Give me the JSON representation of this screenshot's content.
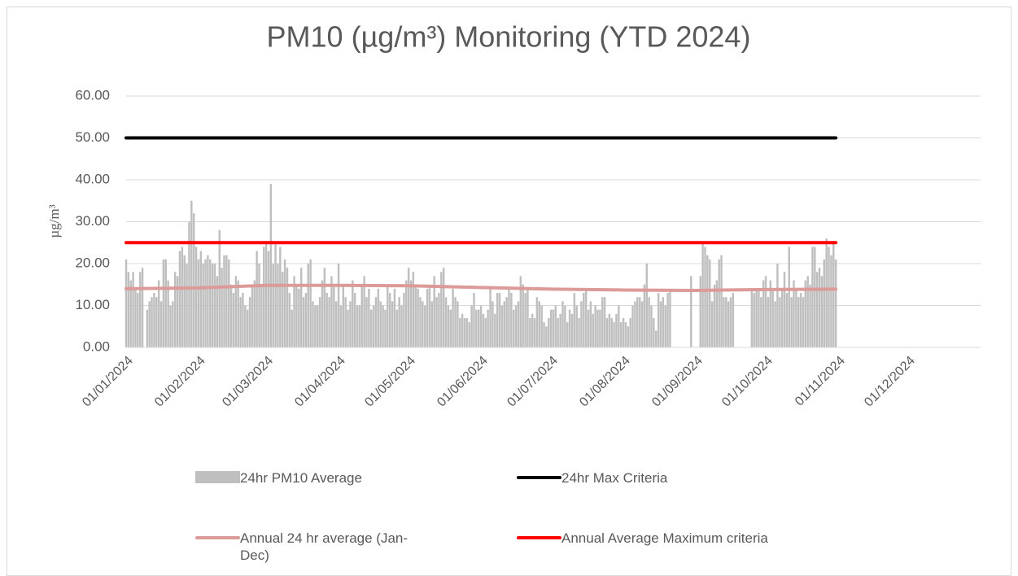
{
  "chart_data": {
    "type": "bar",
    "title": "PM10 (µg/m³) Monitoring (YTD 2024)",
    "y_label": "µg/m³",
    "xlim": [
      "01/01/2024",
      "01/01/2025"
    ],
    "xticks": [
      "01/01/2024",
      "01/02/2024",
      "01/03/2024",
      "01/04/2024",
      "01/05/2024",
      "01/06/2024",
      "01/07/2024",
      "01/08/2024",
      "01/09/2024",
      "01/10/2024",
      "01/11/2024",
      "01/12/2024"
    ],
    "ylim": [
      0,
      60
    ],
    "yticks": [
      {
        "value": 0,
        "label": "0.00"
      },
      {
        "value": 10,
        "label": "10.00"
      },
      {
        "value": 20,
        "label": "20.00"
      },
      {
        "value": 30,
        "label": "30.00"
      },
      {
        "value": 40,
        "label": "40.00"
      },
      {
        "value": 50,
        "label": "50.00"
      },
      {
        "value": 60,
        "label": "60.00"
      }
    ],
    "grid": true,
    "legend": "bottom",
    "series": [
      {
        "name": "24hr PM10 Average",
        "type": "bar",
        "color": "#bfbfbf",
        "x": [
          "01/01/2024",
          "02/01/2024",
          "03/01/2024",
          "04/01/2024",
          "05/01/2024",
          "06/01/2024",
          "07/01/2024",
          "08/01/2024",
          "09/01/2024",
          "10/01/2024",
          "11/01/2024",
          "12/01/2024",
          "13/01/2024",
          "14/01/2024",
          "15/01/2024",
          "16/01/2024",
          "17/01/2024",
          "18/01/2024",
          "19/01/2024",
          "20/01/2024",
          "21/01/2024",
          "22/01/2024",
          "23/01/2024",
          "24/01/2024",
          "25/01/2024",
          "26/01/2024",
          "27/01/2024",
          "28/01/2024",
          "29/01/2024",
          "30/01/2024",
          "31/01/2024",
          "01/02/2024",
          "02/02/2024",
          "03/02/2024",
          "04/02/2024",
          "05/02/2024",
          "06/02/2024",
          "07/02/2024",
          "08/02/2024",
          "09/02/2024",
          "10/02/2024",
          "11/02/2024",
          "12/02/2024",
          "13/02/2024",
          "14/02/2024",
          "15/02/2024",
          "16/02/2024",
          "17/02/2024",
          "18/02/2024",
          "19/02/2024",
          "20/02/2024",
          "21/02/2024",
          "22/02/2024",
          "23/02/2024",
          "24/02/2024",
          "25/02/2024",
          "26/02/2024",
          "27/02/2024",
          "28/02/2024",
          "29/02/2024",
          "01/03/2024",
          "02/03/2024",
          "03/03/2024",
          "04/03/2024",
          "05/03/2024",
          "06/03/2024",
          "07/03/2024",
          "08/03/2024",
          "09/03/2024",
          "10/03/2024",
          "11/03/2024",
          "12/03/2024",
          "13/03/2024",
          "14/03/2024",
          "15/03/2024",
          "16/03/2024",
          "17/03/2024",
          "18/03/2024",
          "19/03/2024",
          "20/03/2024",
          "21/03/2024",
          "22/03/2024",
          "23/03/2024",
          "24/03/2024",
          "25/03/2024",
          "26/03/2024",
          "27/03/2024",
          "28/03/2024",
          "29/03/2024",
          "30/03/2024",
          "31/03/2024",
          "01/04/2024",
          "02/04/2024",
          "03/04/2024",
          "04/04/2024",
          "05/04/2024",
          "06/04/2024",
          "07/04/2024",
          "08/04/2024",
          "09/04/2024",
          "10/04/2024",
          "11/04/2024",
          "12/04/2024",
          "13/04/2024",
          "14/04/2024",
          "15/04/2024",
          "16/04/2024",
          "17/04/2024",
          "18/04/2024",
          "19/04/2024",
          "20/04/2024",
          "21/04/2024",
          "22/04/2024",
          "23/04/2024",
          "24/04/2024",
          "25/04/2024",
          "26/04/2024",
          "27/04/2024",
          "28/04/2024",
          "29/04/2024",
          "30/04/2024",
          "01/05/2024",
          "02/05/2024",
          "03/05/2024",
          "04/05/2024",
          "05/05/2024",
          "06/05/2024",
          "07/05/2024",
          "08/05/2024",
          "09/05/2024",
          "10/05/2024",
          "11/05/2024",
          "12/05/2024",
          "13/05/2024",
          "14/05/2024",
          "15/05/2024",
          "16/05/2024",
          "17/05/2024",
          "18/05/2024",
          "19/05/2024",
          "20/05/2024",
          "21/05/2024",
          "22/05/2024",
          "23/05/2024",
          "24/05/2024",
          "25/05/2024",
          "26/05/2024",
          "27/05/2024",
          "28/05/2024",
          "29/05/2024",
          "30/05/2024",
          "31/05/2024",
          "01/06/2024",
          "02/06/2024",
          "03/06/2024",
          "04/06/2024",
          "05/06/2024",
          "06/06/2024",
          "07/06/2024",
          "08/06/2024",
          "09/06/2024",
          "10/06/2024",
          "11/06/2024",
          "12/06/2024",
          "13/06/2024",
          "14/06/2024",
          "15/06/2024",
          "16/06/2024",
          "17/06/2024",
          "18/06/2024",
          "19/06/2024",
          "20/06/2024",
          "21/06/2024",
          "22/06/2024",
          "23/06/2024",
          "24/06/2024",
          "25/06/2024",
          "26/06/2024",
          "27/06/2024",
          "28/06/2024",
          "29/06/2024",
          "30/06/2024",
          "01/07/2024",
          "02/07/2024",
          "03/07/2024",
          "04/07/2024",
          "05/07/2024",
          "06/07/2024",
          "07/07/2024",
          "08/07/2024",
          "09/07/2024",
          "10/07/2024",
          "11/07/2024",
          "12/07/2024",
          "13/07/2024",
          "14/07/2024",
          "15/07/2024",
          "16/07/2024",
          "17/07/2024",
          "18/07/2024",
          "19/07/2024",
          "20/07/2024",
          "21/07/2024",
          "22/07/2024",
          "23/07/2024",
          "24/07/2024",
          "25/07/2024",
          "26/07/2024",
          "27/07/2024",
          "28/07/2024",
          "29/07/2024",
          "30/07/2024",
          "31/07/2024",
          "01/08/2024",
          "02/08/2024",
          "03/08/2024",
          "04/08/2024",
          "05/08/2024",
          "06/08/2024",
          "07/08/2024",
          "08/08/2024",
          "09/08/2024",
          "10/08/2024",
          "11/08/2024",
          "12/08/2024",
          "13/08/2024",
          "14/08/2024",
          "15/08/2024",
          "16/08/2024",
          "17/08/2024",
          "18/08/2024",
          "19/08/2024",
          "20/08/2024",
          "21/08/2024",
          "22/08/2024",
          "23/08/2024",
          "24/08/2024",
          "25/08/2024",
          "26/08/2024",
          "27/08/2024",
          "28/08/2024",
          "29/08/2024",
          "30/08/2024",
          "31/08/2024",
          "01/09/2024",
          "02/09/2024",
          "03/09/2024",
          "04/09/2024",
          "05/09/2024",
          "06/09/2024",
          "07/09/2024",
          "08/09/2024",
          "09/09/2024",
          "10/09/2024",
          "11/09/2024",
          "12/09/2024",
          "13/09/2024",
          "14/09/2024",
          "15/09/2024",
          "16/09/2024",
          "17/09/2024",
          "18/09/2024",
          "19/09/2024",
          "20/09/2024",
          "21/09/2024",
          "22/09/2024",
          "23/09/2024",
          "24/09/2024",
          "25/09/2024",
          "26/09/2024",
          "27/09/2024",
          "28/09/2024",
          "29/09/2024",
          "30/09/2024",
          "01/10/2024",
          "02/10/2024",
          "03/10/2024",
          "04/10/2024",
          "05/10/2024",
          "06/10/2024",
          "07/10/2024",
          "08/10/2024",
          "09/10/2024",
          "10/10/2024",
          "11/10/2024",
          "12/10/2024",
          "13/10/2024",
          "14/10/2024",
          "15/10/2024",
          "16/10/2024",
          "17/10/2024",
          "18/10/2024",
          "19/10/2024",
          "20/10/2024",
          "21/10/2024",
          "22/10/2024",
          "23/10/2024",
          "24/10/2024",
          "25/10/2024",
          "26/10/2024",
          "27/10/2024",
          "28/10/2024",
          "29/10/2024",
          "30/10/2024",
          "31/10/2024"
        ],
        "values": [
          21,
          18,
          16,
          18,
          14,
          13,
          18,
          19,
          null,
          9,
          11,
          12,
          13,
          12,
          16,
          11,
          21,
          21,
          16,
          10,
          11,
          18,
          17,
          23,
          24,
          22,
          20,
          30,
          35,
          32,
          24,
          21,
          23,
          20,
          21,
          22,
          21,
          20,
          20,
          17,
          28,
          19,
          22,
          22,
          21,
          15,
          13,
          17,
          16,
          12,
          13,
          10,
          9,
          12,
          15,
          16,
          23,
          20,
          15,
          24,
          25,
          23,
          39,
          20,
          25,
          20,
          24,
          18,
          21,
          19,
          13,
          9,
          17,
          15,
          14,
          19,
          12,
          13,
          20,
          21,
          11,
          10,
          10,
          12,
          16,
          19,
          13,
          12,
          17,
          15,
          11,
          20,
          10,
          15,
          12,
          9,
          11,
          16,
          13,
          10,
          10,
          15,
          17,
          12,
          14,
          9,
          10,
          12,
          14,
          11,
          10,
          9,
          15,
          13,
          11,
          14,
          9,
          12,
          10,
          13,
          16,
          19,
          16,
          18,
          15,
          14,
          12,
          11,
          10,
          14,
          15,
          11,
          17,
          12,
          13,
          18,
          19,
          12,
          10,
          9,
          14,
          12,
          11,
          7,
          8,
          7,
          7,
          6,
          10,
          13,
          9,
          9,
          10,
          8,
          7,
          9,
          14,
          11,
          8,
          13,
          13,
          10,
          11,
          12,
          14,
          13,
          9,
          10,
          11,
          17,
          15,
          13,
          14,
          7,
          8,
          7,
          12,
          11,
          10,
          6,
          5,
          7,
          9,
          9,
          10,
          7,
          8,
          11,
          10,
          6,
          9,
          8,
          13,
          10,
          7,
          11,
          13,
          14,
          9,
          11,
          8,
          10,
          9,
          9,
          12,
          12,
          7,
          8,
          7,
          6,
          8,
          10,
          6,
          7,
          6,
          5,
          7,
          10,
          11,
          12,
          12,
          11,
          15,
          20,
          12,
          10,
          7,
          4,
          13,
          11,
          12,
          10,
          13,
          14,
          null,
          null,
          null,
          null,
          null,
          null,
          null,
          null,
          17,
          null,
          null,
          null,
          17,
          25,
          24,
          22,
          21,
          11,
          15,
          16,
          21,
          22,
          12,
          12,
          11,
          12,
          13,
          null,
          null,
          null,
          null,
          null,
          null,
          null,
          14,
          13,
          14,
          14,
          12,
          16,
          17,
          12,
          16,
          14,
          11,
          20,
          12,
          14,
          18,
          13,
          24,
          12,
          16,
          14,
          12,
          13,
          12,
          16,
          17,
          15,
          24,
          24,
          18,
          19,
          17,
          21,
          26,
          24,
          22,
          25,
          21
        ]
      },
      {
        "name": "24hr Max Criteria",
        "type": "line",
        "color": "#000000",
        "x": [
          "01/01/2024",
          "31/10/2024"
        ],
        "values": [
          50,
          50
        ]
      },
      {
        "name": "Annual 24 hr average (Jan-Dec)",
        "type": "line",
        "color": "#dc9a98",
        "x": [
          "01/01/2024",
          "01/02/2024",
          "01/03/2024",
          "01/04/2024",
          "01/05/2024",
          "01/06/2024",
          "01/07/2024",
          "01/08/2024",
          "01/09/2024",
          "01/10/2024",
          "31/10/2024"
        ],
        "values": [
          14,
          14.2,
          14.8,
          14.8,
          14.7,
          14.3,
          13.9,
          13.7,
          13.6,
          13.8,
          13.9
        ]
      },
      {
        "name": "Annual Average Maximum criteria",
        "type": "line",
        "color": "#ff0000",
        "x": [
          "01/01/2024",
          "31/10/2024"
        ],
        "values": [
          25,
          25
        ]
      }
    ]
  }
}
